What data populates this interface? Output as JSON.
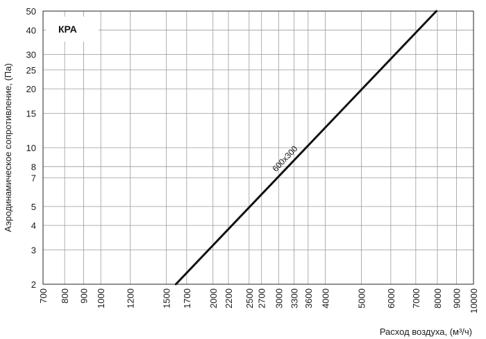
{
  "chart_data": {
    "type": "line",
    "title": "",
    "badge": "КРА",
    "xlabel": "Расход воздуха, (м³/ч)",
    "ylabel": "Аэродинамическое сопротивление, (Па)",
    "xscale": "log",
    "yscale": "log",
    "xlim": [
      700,
      10000
    ],
    "ylim": [
      2,
      50
    ],
    "grid": true,
    "x_ticks": [
      "700",
      "800",
      "900",
      "1000",
      "1200",
      "1500",
      "1700",
      "2000",
      "2200",
      "2500",
      "2700",
      "3000",
      "3300",
      "3600",
      "4000",
      "5000",
      "6000",
      "7000",
      "8000",
      "9000",
      "10000"
    ],
    "y_ticks": [
      "2",
      "3",
      "4",
      "5",
      "7",
      "8",
      "10",
      "15",
      "20",
      "25",
      "30",
      "40",
      "50"
    ],
    "series": [
      {
        "name": "600x300",
        "color": "#111111",
        "x": [
          1590,
          7950
        ],
        "y": [
          2,
          50
        ]
      }
    ]
  }
}
